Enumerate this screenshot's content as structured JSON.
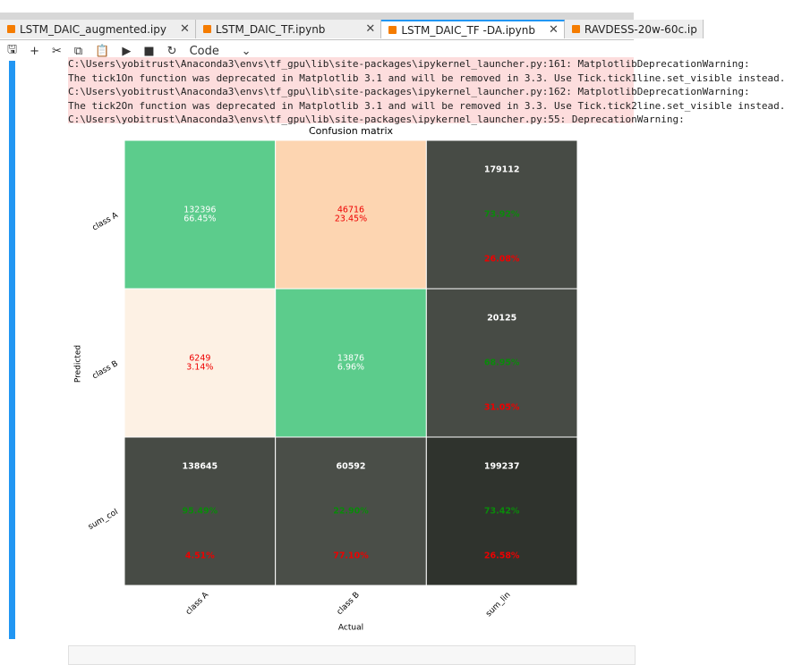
{
  "tabs": [
    "LSTM_DAIC_augmented.ipy",
    "LSTM_DAIC_TF.ipynb",
    "LSTM_DAIC_TF -DA.ipynb",
    "RAVDESS-20w-60c.ip"
  ],
  "toolbar": {
    "cell_type": "Code"
  },
  "output": {
    "warnings": [
      "C:\\Users\\yobitrust\\Anaconda3\\envs\\tf_gpu\\lib\\site-packages\\ipykernel_launcher.py:161: MatplotlibDeprecationWarning:",
      "The tick1On function was deprecated in Matplotlib 3.1 and will be removed in 3.3. Use Tick.tick1line.set_visible instead.",
      "C:\\Users\\yobitrust\\Anaconda3\\envs\\tf_gpu\\lib\\site-packages\\ipykernel_launcher.py:162: MatplotlibDeprecationWarning:",
      "The tick2On function was deprecated in Matplotlib 3.1 and will be removed in 3.3. Use Tick.tick2line.set_visible instead.",
      "C:\\Users\\yobitrust\\Anaconda3\\envs\\tf_gpu\\lib\\site-packages\\ipykernel_launcher.py:55: DeprecationWarning:"
    ]
  },
  "figure": {
    "title": "Confusion matrix",
    "x_label": "Actual",
    "y_label": "Predicted",
    "row_labels": [
      "class A",
      "class B",
      "sum_col"
    ],
    "col_labels": [
      "class A",
      "class B",
      "sum_lin"
    ],
    "cells": [
      [
        {
          "count": "132396",
          "percent": "66.45%"
        },
        {
          "count": "46716",
          "percent": "23.45%"
        },
        {
          "count": "179112",
          "percent_good": "73.92%",
          "percent_bad": "26.08%"
        }
      ],
      [
        {
          "count": "6249",
          "percent": "3.14%"
        },
        {
          "count": "13876",
          "percent": "6.96%"
        },
        {
          "count": "20125",
          "percent_good": "68.95%",
          "percent_bad": "31.05%"
        }
      ],
      [
        {
          "count": "138645",
          "percent_good": "95.49%",
          "percent_bad": "4.51%"
        },
        {
          "count": "60592",
          "percent_good": "22.90%",
          "percent_bad": "77.10%"
        },
        {
          "count": "199237",
          "percent_good": "73.42%",
          "percent_bad": "26.58%"
        }
      ]
    ]
  }
}
